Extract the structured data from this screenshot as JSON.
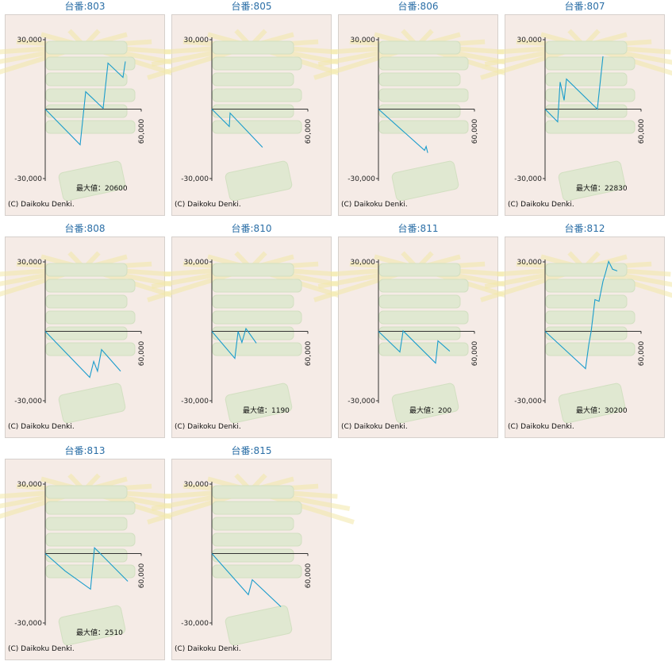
{
  "chart_data": [
    {
      "type": "line",
      "title": "台番:803",
      "credit": "(C) Daikoku Denki.",
      "annotation": "最大値：20600",
      "x": [
        0,
        21800,
        25300,
        36200,
        39200,
        48600,
        50100
      ],
      "series": [
        {
          "color": "#1a9ccc",
          "values": [
            0,
            -15400,
            7500,
            343,
            19900,
            13700,
            20600
          ]
        }
      ],
      "xlim": [
        0,
        60000
      ],
      "xticks": [
        {
          "value": 60000,
          "label": "60,000"
        }
      ],
      "ylim": [
        -30000,
        30000
      ],
      "yticks": [
        {
          "value": 30000,
          "label": "30,000"
        },
        {
          "value": -30000,
          "label": "-30,000"
        }
      ]
    },
    {
      "type": "line",
      "title": "台番:805",
      "credit": "(C) Daikoku Denki.",
      "x": [
        0,
        10900,
        11400,
        31700
      ],
      "series": [
        {
          "color": "#1a9ccc",
          "values": [
            0,
            -7500,
            -1700,
            -16500
          ]
        }
      ],
      "xlim": [
        0,
        60000
      ],
      "xticks": [
        {
          "value": 60000,
          "label": "60,000"
        }
      ],
      "ylim": [
        -30000,
        30000
      ],
      "yticks": [
        {
          "value": 30000,
          "label": "30,000"
        },
        {
          "value": -30000,
          "label": "-30,000"
        }
      ]
    },
    {
      "type": "line",
      "title": "台番:806",
      "credit": "(C) Daikoku Denki.",
      "x": [
        0,
        28800,
        29800,
        30800
      ],
      "series": [
        {
          "color": "#1a9ccc",
          "values": [
            0,
            -17800,
            -16100,
            -18900
          ]
        }
      ],
      "xlim": [
        0,
        60000
      ],
      "xticks": [
        {
          "value": 60000,
          "label": "60,000"
        }
      ],
      "ylim": [
        -30000,
        30000
      ],
      "yticks": [
        {
          "value": 30000,
          "label": "30,000"
        },
        {
          "value": -30000,
          "label": "-30,000"
        }
      ]
    },
    {
      "type": "line",
      "title": "台番:807",
      "credit": "(C) Daikoku Denki.",
      "annotation": "最大値：22830",
      "x": [
        0,
        7900,
        9400,
        11900,
        13400,
        32700,
        36200
      ],
      "series": [
        {
          "color": "#1a9ccc",
          "values": [
            0,
            -5500,
            11700,
            3800,
            13000,
            0,
            22830
          ]
        }
      ],
      "xlim": [
        0,
        60000
      ],
      "xticks": [
        {
          "value": 60000,
          "label": "60,000"
        }
      ],
      "ylim": [
        -30000,
        30000
      ],
      "yticks": [
        {
          "value": 30000,
          "label": "30,000"
        },
        {
          "value": -30000,
          "label": "-30,000"
        }
      ]
    },
    {
      "type": "line",
      "title": "台番:808",
      "credit": "(C) Daikoku Denki.",
      "x": [
        0,
        27800,
        30300,
        32700,
        35200,
        47100
      ],
      "series": [
        {
          "color": "#1a9ccc",
          "values": [
            0,
            -19900,
            -13000,
            -17200,
            -7900,
            -17200
          ]
        }
      ],
      "xlim": [
        0,
        60000
      ],
      "xticks": [
        {
          "value": 60000,
          "label": "60,000"
        }
      ],
      "ylim": [
        -30000,
        30000
      ],
      "yticks": [
        {
          "value": 30000,
          "label": "30,000"
        },
        {
          "value": -30000,
          "label": "-30,000"
        }
      ]
    },
    {
      "type": "line",
      "title": "台番:810",
      "credit": "(C) Daikoku Denki.",
      "annotation": "最大値：1190",
      "x": [
        0,
        14400,
        16400,
        18800,
        21300,
        27800
      ],
      "series": [
        {
          "color": "#1a9ccc",
          "values": [
            0,
            -11700,
            0,
            -4800,
            1190,
            -5100
          ]
        }
      ],
      "xlim": [
        0,
        60000
      ],
      "xticks": [
        {
          "value": 60000,
          "label": "60,000"
        }
      ],
      "ylim": [
        -30000,
        30000
      ],
      "yticks": [
        {
          "value": 30000,
          "label": "30,000"
        },
        {
          "value": -30000,
          "label": "-30,000"
        }
      ]
    },
    {
      "type": "line",
      "title": "台番:811",
      "credit": "(C) Daikoku Denki.",
      "annotation": "最大値：200",
      "x": [
        0,
        13400,
        15400,
        35700,
        37200,
        44600
      ],
      "series": [
        {
          "color": "#1a9ccc",
          "values": [
            0,
            -8900,
            200,
            -13700,
            -4100,
            -8600
          ]
        }
      ],
      "xlim": [
        0,
        60000
      ],
      "xticks": [
        {
          "value": 60000,
          "label": "60,000"
        }
      ],
      "ylim": [
        -30000,
        30000
      ],
      "yticks": [
        {
          "value": 30000,
          "label": "30,000"
        },
        {
          "value": -30000,
          "label": "-30,000"
        }
      ]
    },
    {
      "type": "line",
      "title": "台番:812",
      "credit": "(C) Daikoku Denki.",
      "annotation": "最大値：30200",
      "x": [
        0,
        25300,
        27300,
        28800,
        31200,
        33700,
        36200,
        37700,
        39700,
        42200,
        45100
      ],
      "series": [
        {
          "color": "#1a9ccc",
          "values": [
            0,
            -16100,
            -5800,
            0,
            13700,
            13000,
            21600,
            25000,
            30200,
            26800,
            26100
          ]
        }
      ],
      "xlim": [
        0,
        60000
      ],
      "xticks": [
        {
          "value": 60000,
          "label": "60,000"
        }
      ],
      "ylim": [
        -30000,
        30000
      ],
      "yticks": [
        {
          "value": 30000,
          "label": "30,000"
        },
        {
          "value": -30000,
          "label": "-30,000"
        }
      ]
    },
    {
      "type": "line",
      "title": "台番:813",
      "credit": "(C) Daikoku Denki.",
      "annotation": "最大値：2510",
      "x": [
        0,
        12400,
        28300,
        30800,
        51600
      ],
      "series": [
        {
          "color": "#1a9ccc",
          "values": [
            0,
            -7500,
            -15400,
            2510,
            -12000
          ]
        }
      ],
      "xlim": [
        0,
        60000
      ],
      "xticks": [
        {
          "value": 60000,
          "label": "60,000"
        }
      ],
      "ylim": [
        -30000,
        30000
      ],
      "yticks": [
        {
          "value": 30000,
          "label": "30,000"
        },
        {
          "value": -30000,
          "label": "-30,000"
        }
      ]
    },
    {
      "type": "line",
      "title": "台番:815",
      "credit": "(C) Daikoku Denki.",
      "x": [
        0,
        22800,
        25300,
        43200
      ],
      "series": [
        {
          "color": "#1a9ccc",
          "values": [
            0,
            -17800,
            -11300,
            -23000
          ]
        }
      ],
      "xlim": [
        0,
        60000
      ],
      "xticks": [
        {
          "value": 60000,
          "label": "60,000"
        }
      ],
      "ylim": [
        -30000,
        30000
      ],
      "yticks": [
        {
          "value": 30000,
          "label": "30,000"
        },
        {
          "value": -30000,
          "label": "-30,000"
        }
      ]
    }
  ]
}
